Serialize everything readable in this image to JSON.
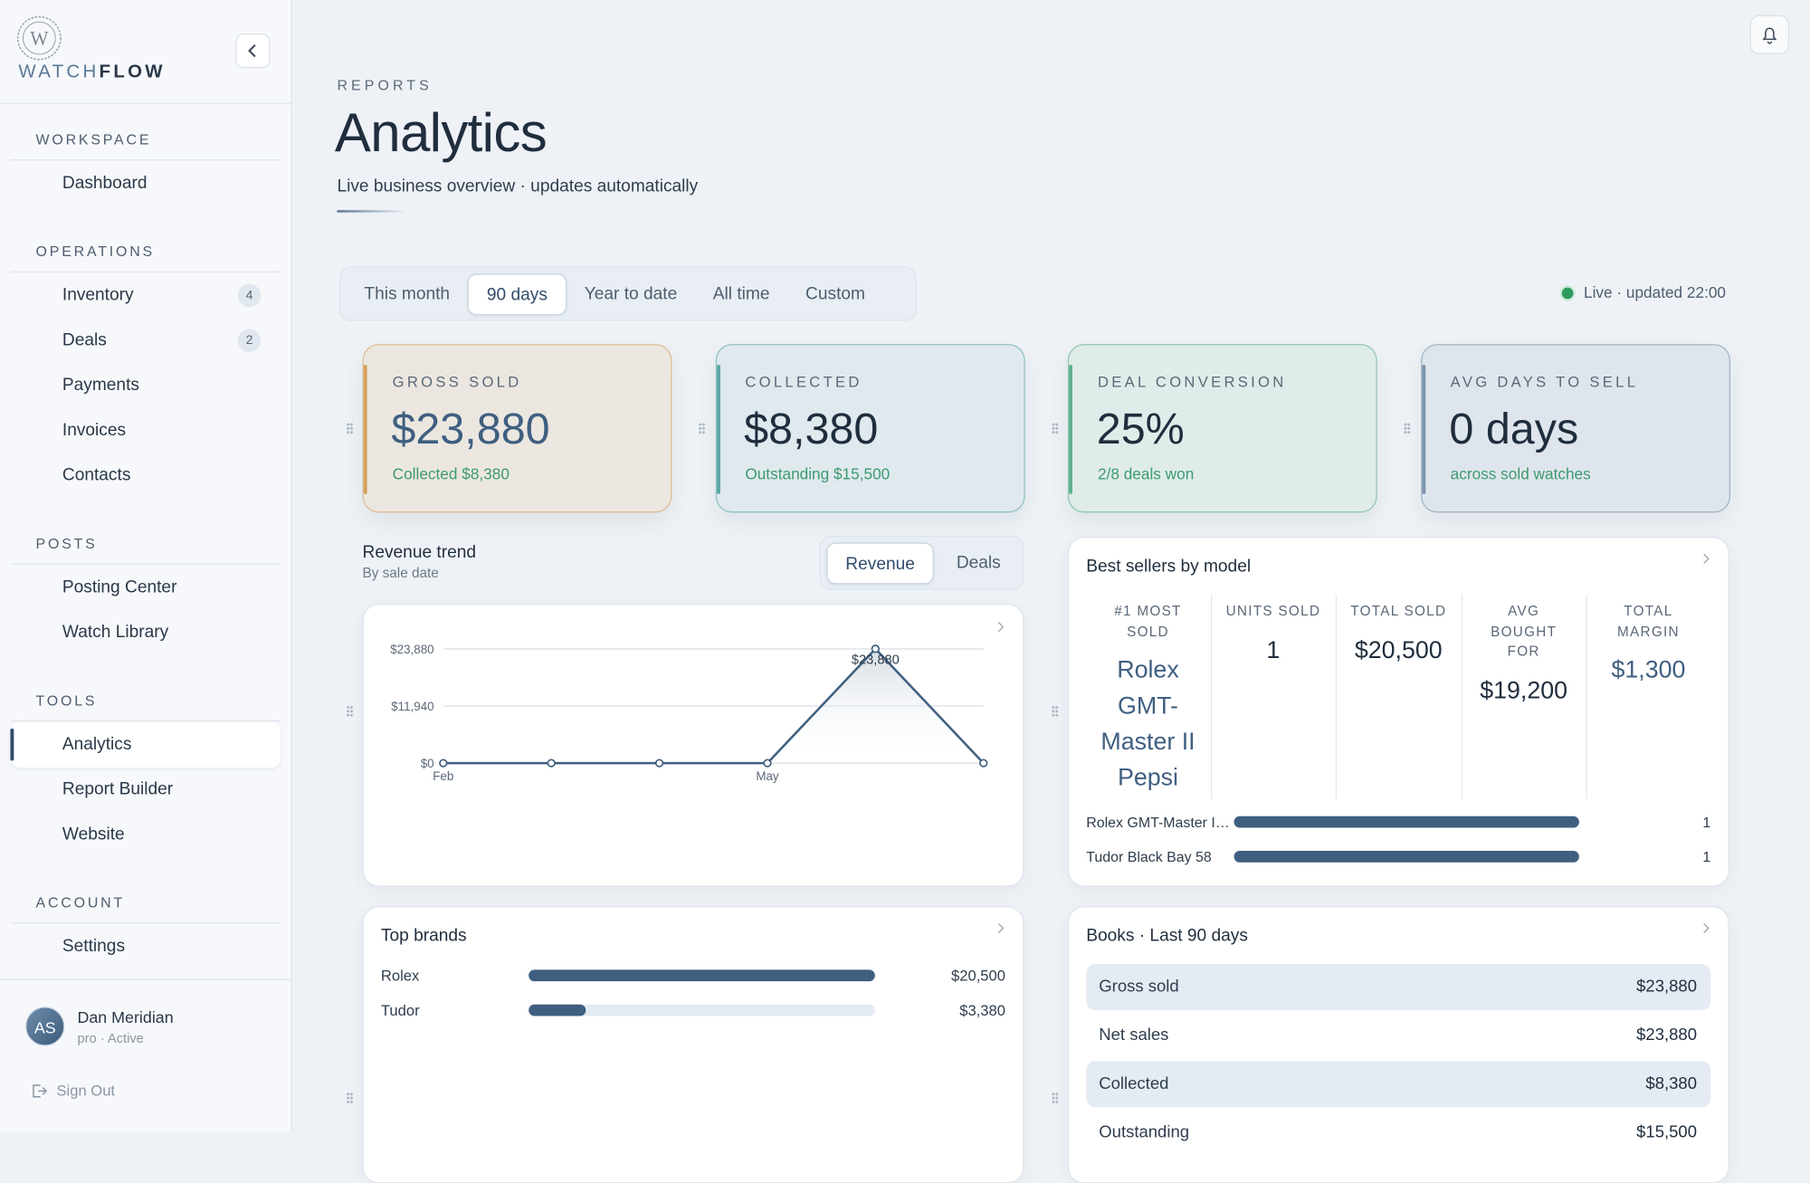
{
  "brand": {
    "logo_letter": "W",
    "name_light": "WATCH",
    "name_bold": "FLOW"
  },
  "sidebar": {
    "sections": [
      {
        "title": "WORKSPACE",
        "items": [
          {
            "label": "Dashboard"
          }
        ]
      },
      {
        "title": "OPERATIONS",
        "items": [
          {
            "label": "Inventory",
            "badge": "4"
          },
          {
            "label": "Deals",
            "badge": "2"
          },
          {
            "label": "Payments"
          },
          {
            "label": "Invoices"
          },
          {
            "label": "Contacts"
          }
        ]
      },
      {
        "title": "POSTS",
        "items": [
          {
            "label": "Posting Center"
          },
          {
            "label": "Watch Library"
          }
        ]
      },
      {
        "title": "TOOLS",
        "items": [
          {
            "label": "Analytics",
            "active": true
          },
          {
            "label": "Report Builder"
          },
          {
            "label": "Website"
          }
        ]
      },
      {
        "title": "ACCOUNT",
        "items": [
          {
            "label": "Settings"
          }
        ]
      }
    ],
    "user": {
      "initials": "AS",
      "name": "Dan Meridian",
      "status": "pro · Active"
    },
    "sign_out": "Sign Out"
  },
  "header": {
    "eyebrow": "REPORTS",
    "title": "Analytics",
    "subtitle": "Live business overview · updates automatically"
  },
  "range_tabs": {
    "options": [
      "This month",
      "90 days",
      "Year to date",
      "All time",
      "Custom"
    ],
    "selected": 1
  },
  "live_status": "Live · updated 22:00",
  "kpis": [
    {
      "label": "GROSS SOLD",
      "value": "$23,880",
      "note": "Collected $8,380",
      "color": "#d4a25e"
    },
    {
      "label": "COLLECTED",
      "value": "$8,380",
      "note": "Outstanding $15,500",
      "color": "#5aa7a5"
    },
    {
      "label": "DEAL CONVERSION",
      "value": "25%",
      "note": "2/8 deals won",
      "color": "#5fae8e"
    },
    {
      "label": "AVG DAYS TO SELL",
      "value": "0 days",
      "note": "across sold watches",
      "color": "#7b93ad"
    }
  ],
  "revenue_trend": {
    "title": "Revenue trend",
    "subtitle": "By sale date",
    "toggle": {
      "options": [
        "Revenue",
        "Deals"
      ],
      "selected": 0
    },
    "chart": {
      "type": "line",
      "categories": [
        "Feb",
        null,
        null,
        "May",
        null,
        null
      ],
      "values": [
        0,
        0,
        0,
        0,
        23880,
        0
      ],
      "value_labels": [
        null,
        null,
        null,
        null,
        "$23,880",
        null
      ],
      "color": "#3f5f80",
      "ylim": [
        0,
        23880
      ],
      "yticks": [
        {
          "value": 0,
          "label": "$0"
        },
        {
          "value": 11940,
          "label": "$11,940"
        },
        {
          "value": 23880,
          "label": "$23,880"
        }
      ],
      "grid": true
    }
  },
  "best_sellers": {
    "title": "Best sellers by model",
    "columns": [
      {
        "label": "#1 MOST SOLD",
        "value": "Rolex GMT-Master II Pepsi",
        "accent": true
      },
      {
        "label": "UNITS SOLD",
        "value": "1"
      },
      {
        "label": "TOTAL SOLD",
        "value": "$20,500"
      },
      {
        "label": "AVG BOUGHT FOR",
        "value": "$19,200"
      },
      {
        "label": "TOTAL MARGIN",
        "value": "$1,300",
        "accent": true
      }
    ],
    "chart": {
      "type": "bar",
      "categories": [
        "Rolex GMT-Master I…",
        "Tudor Black Bay 58"
      ],
      "values": [
        1,
        1
      ],
      "xlim": [
        0,
        1
      ],
      "color": "#3f5f80"
    }
  },
  "top_brands": {
    "title": "Top brands",
    "chart": {
      "type": "bar",
      "categories": [
        "Rolex",
        "Tudor"
      ],
      "values": [
        20500,
        3380
      ],
      "value_labels": [
        "$20,500",
        "$3,380"
      ],
      "xlim": [
        0,
        20500
      ],
      "color": "#3f5f80"
    }
  },
  "books": {
    "title": "Books · Last 90 days",
    "rows": [
      [
        "Gross sold",
        "$23,880"
      ],
      [
        "Net sales",
        "$23,880"
      ],
      [
        "Collected",
        "$8,380"
      ],
      [
        "Outstanding",
        "$15,500"
      ]
    ]
  }
}
